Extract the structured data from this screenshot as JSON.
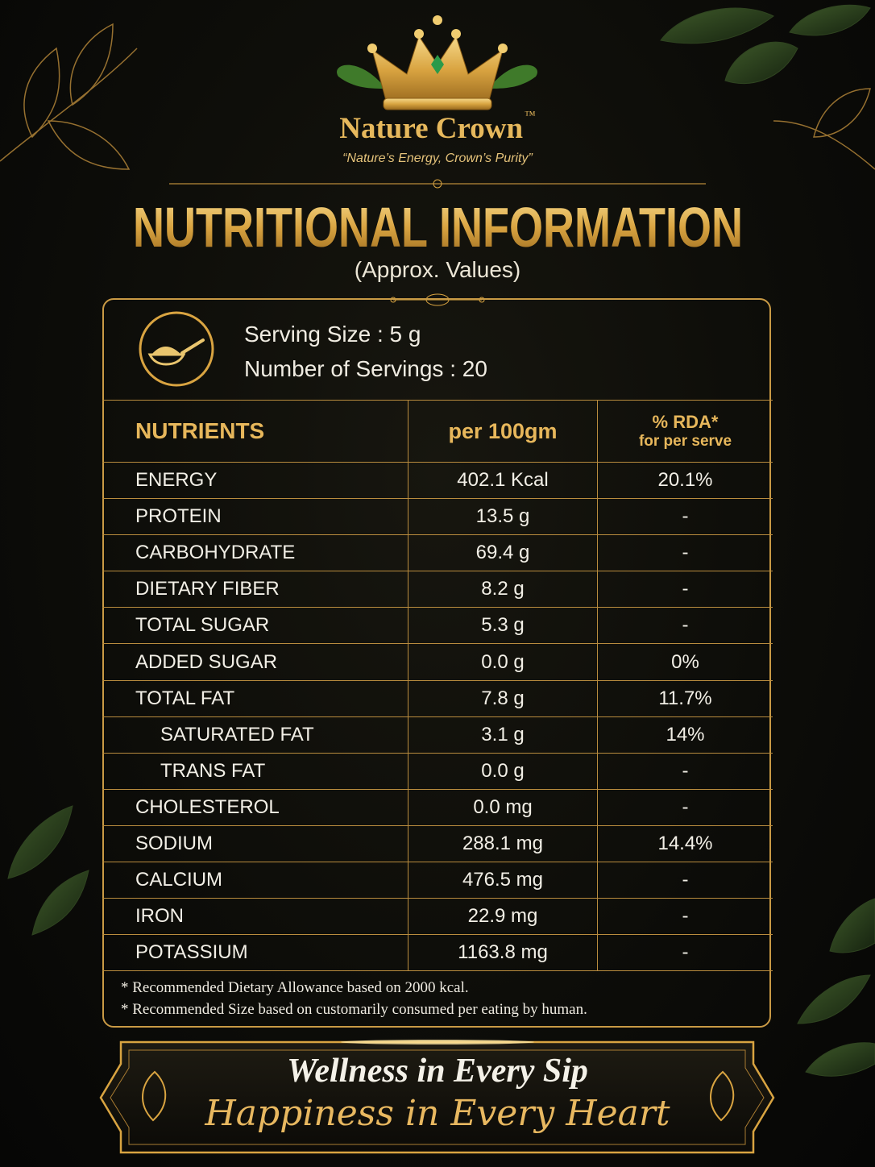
{
  "header": {
    "brand": "Nature Crown",
    "trademark": "™",
    "tagline": "“Nature’s Energy, Crown’s Purity”",
    "title": "NUTRITIONAL INFORMATION",
    "subtitle": "(Approx. Values)"
  },
  "serving": {
    "size": "Serving Size : 5 g",
    "count": "Number of Servings : 20"
  },
  "table": {
    "columns": [
      "NUTRIENTS",
      "per 100gm",
      "% RDA*",
      "for per serve"
    ],
    "rows": [
      [
        "ENERGY",
        "402.1 Kcal",
        "20.1%"
      ],
      [
        "PROTEIN",
        "13.5 g",
        "-"
      ],
      [
        "CARBOHYDRATE",
        "69.4 g",
        "-"
      ],
      [
        "DIETARY FIBER",
        "8.2 g",
        "-"
      ],
      [
        "TOTAL SUGAR",
        "5.3 g",
        "-"
      ],
      [
        "ADDED SUGAR",
        "0.0 g",
        "0%"
      ],
      [
        "TOTAL FAT",
        "7.8 g",
        "11.7%"
      ],
      [
        "SATURATED FAT",
        "3.1 g",
        "14%"
      ],
      [
        "TRANS FAT",
        "0.0 g",
        "-"
      ],
      [
        "CHOLESTEROL",
        "0.0 mg",
        "-"
      ],
      [
        "SODIUM",
        "288.1 mg",
        "14.4%"
      ],
      [
        "CALCIUM",
        "476.5 mg",
        "-"
      ],
      [
        "IRON",
        "22.9 mg",
        "-"
      ],
      [
        "POTASSIUM",
        "1163.8 mg",
        "-"
      ]
    ]
  },
  "footnotes": [
    "* Recommended Dietary Allowance based on 2000 kcal.",
    "* Recommended Size based on customarily consumed per eating by human."
  ],
  "banner": {
    "line1": "Wellness in Every Sip",
    "line2": "Happiness in Every Heart"
  }
}
